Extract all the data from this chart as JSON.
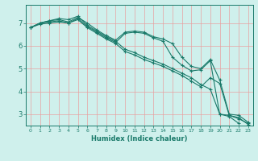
{
  "xlabel": "Humidex (Indice chaleur)",
  "ylabel": "",
  "background_color": "#cff0ec",
  "grid_color": "#e8a0a0",
  "line_color": "#1a7a6a",
  "xlim": [
    -0.5,
    23.5
  ],
  "ylim": [
    2.5,
    7.8
  ],
  "yticks": [
    3,
    4,
    5,
    6,
    7
  ],
  "xticks": [
    0,
    1,
    2,
    3,
    4,
    5,
    6,
    7,
    8,
    9,
    10,
    11,
    12,
    13,
    14,
    15,
    16,
    17,
    18,
    19,
    20,
    21,
    22,
    23
  ],
  "series": [
    {
      "x": [
        0,
        1,
        2,
        3,
        4,
        5,
        6,
        7,
        8,
        9,
        10,
        11,
        12,
        13,
        14,
        15,
        16,
        17,
        18,
        19,
        20,
        21,
        22,
        23
      ],
      "y": [
        6.8,
        7.0,
        7.1,
        7.2,
        7.15,
        7.3,
        6.9,
        6.65,
        6.4,
        6.2,
        5.85,
        5.7,
        5.5,
        5.35,
        5.2,
        5.0,
        4.8,
        4.6,
        4.3,
        4.1,
        3.0,
        2.95,
        2.8,
        2.6
      ]
    },
    {
      "x": [
        0,
        1,
        2,
        3,
        4,
        5,
        6,
        7,
        8,
        9,
        10,
        11,
        12,
        13,
        14,
        15,
        16,
        17,
        18,
        19,
        20,
        21,
        22,
        23
      ],
      "y": [
        6.8,
        7.0,
        7.1,
        7.15,
        7.05,
        7.25,
        7.0,
        6.7,
        6.45,
        6.25,
        6.6,
        6.65,
        6.6,
        6.4,
        6.3,
        6.1,
        5.5,
        5.1,
        5.0,
        5.4,
        4.5,
        3.0,
        2.95,
        2.65
      ]
    },
    {
      "x": [
        0,
        1,
        2,
        3,
        4,
        5,
        6,
        7,
        8,
        9,
        10,
        11,
        12,
        13,
        14,
        15,
        16,
        17,
        18,
        19,
        20,
        21,
        22,
        23
      ],
      "y": [
        6.8,
        7.0,
        7.05,
        7.1,
        7.0,
        7.2,
        6.85,
        6.6,
        6.35,
        6.15,
        6.55,
        6.6,
        6.55,
        6.35,
        6.2,
        5.5,
        5.15,
        4.9,
        4.95,
        5.35,
        3.0,
        2.9,
        2.6,
        null
      ]
    },
    {
      "x": [
        0,
        1,
        2,
        3,
        4,
        5,
        6,
        7,
        8,
        9,
        10,
        11,
        12,
        13,
        14,
        15,
        16,
        17,
        18,
        19,
        20,
        21,
        22,
        23
      ],
      "y": [
        6.8,
        6.95,
        7.0,
        7.05,
        7.0,
        7.15,
        6.8,
        6.55,
        6.3,
        6.1,
        5.75,
        5.6,
        5.4,
        5.25,
        5.1,
        4.9,
        4.7,
        4.45,
        4.2,
        4.6,
        4.35,
        2.95,
        2.85,
        2.55
      ]
    }
  ]
}
